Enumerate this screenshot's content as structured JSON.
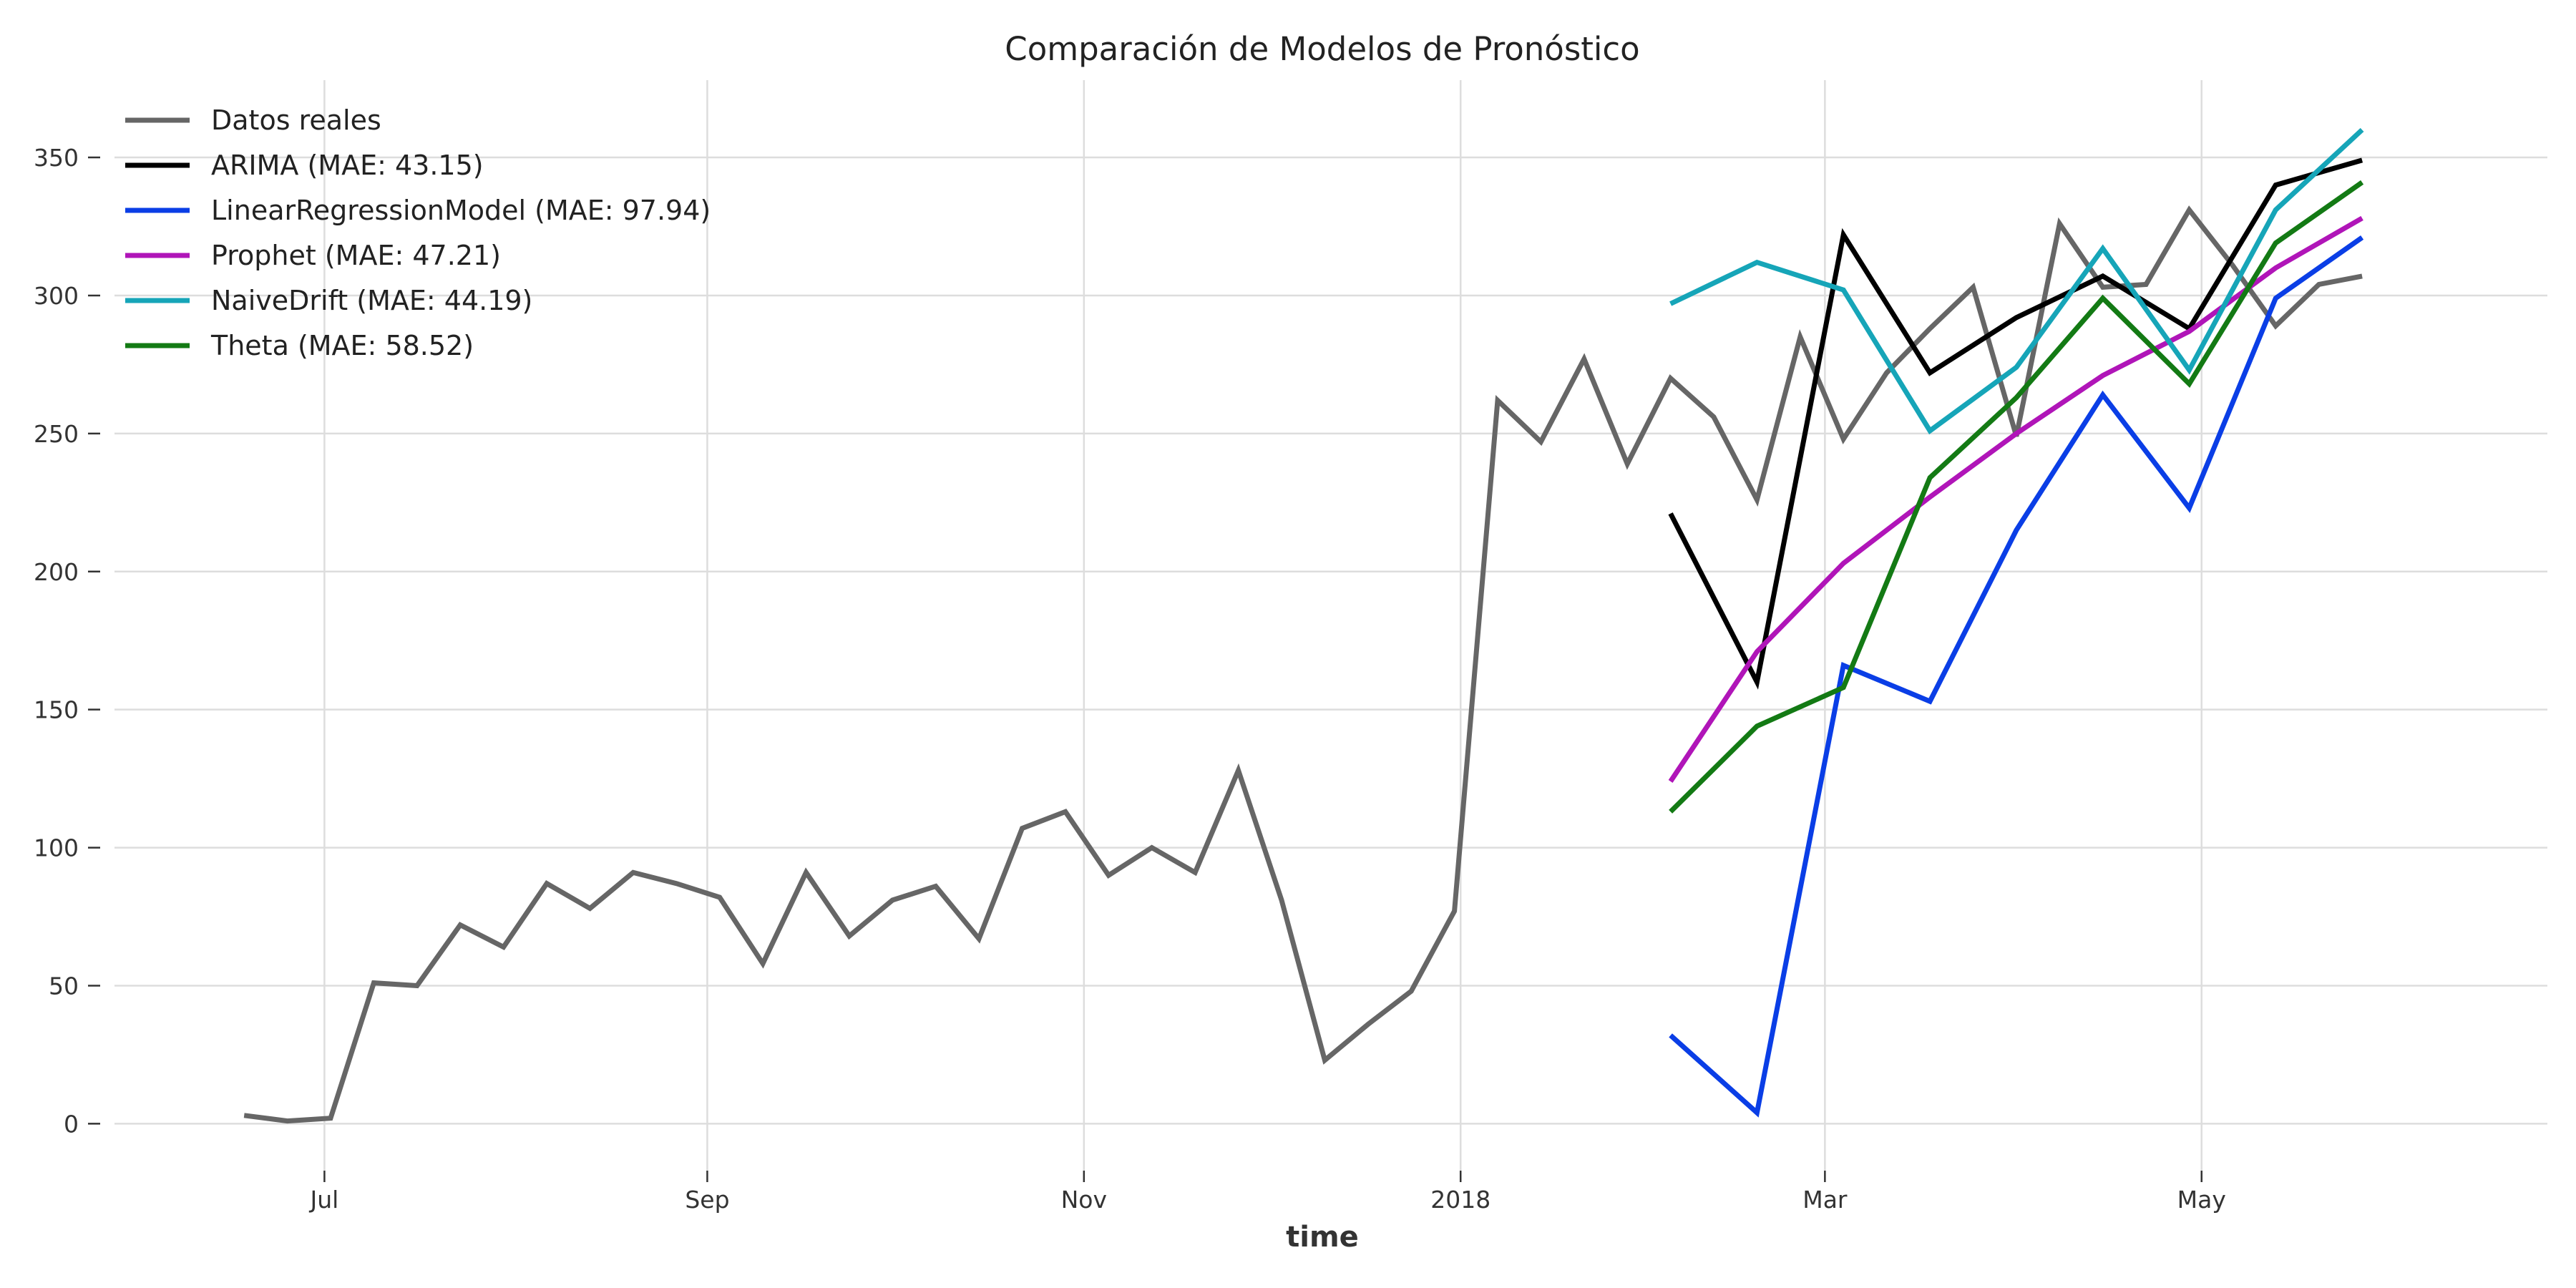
{
  "chart_data": {
    "type": "line",
    "title": "Comparación de Modelos de Pronóstico",
    "xlabel": "time",
    "ylabel": "",
    "ylim": [
      -17,
      378
    ],
    "yticks": [
      0,
      50,
      100,
      150,
      200,
      250,
      300,
      350
    ],
    "xlim": [
      "2017-05-28",
      "2018-06-26"
    ],
    "xticks": [
      {
        "date": "2017-07-01",
        "label": "Jul"
      },
      {
        "date": "2017-09-01",
        "label": "Sep"
      },
      {
        "date": "2017-11-01",
        "label": "Nov"
      },
      {
        "date": "2018-01-01",
        "label": "2018"
      },
      {
        "date": "2018-03-01",
        "label": "Mar"
      },
      {
        "date": "2018-05-01",
        "label": "May"
      }
    ],
    "grid": true,
    "legend_position": "top-left",
    "series": [
      {
        "name": "Datos reales",
        "color": "#666666",
        "start": "2017-06-18",
        "interval_days": 7,
        "values": [
          3,
          1,
          2,
          51,
          50,
          72,
          64,
          87,
          78,
          91,
          87,
          82,
          58,
          91,
          68,
          81,
          86,
          67,
          107,
          113,
          90,
          100,
          91,
          128,
          81,
          23,
          36,
          48,
          77,
          262,
          247,
          277,
          239,
          270,
          256,
          226,
          285,
          248,
          272,
          288,
          303,
          249,
          326,
          303,
          304,
          331,
          311,
          289,
          304,
          307
        ]
      },
      {
        "name": "ARIMA (MAE: 43.15)",
        "color": "#000000",
        "start": "2018-02-04",
        "interval_days": 14,
        "values": [
          221,
          160,
          322,
          272,
          292,
          307,
          288,
          340,
          349
        ]
      },
      {
        "name": "LinearRegressionModel (MAE: 97.94)",
        "color": "#0a3ee6",
        "start": "2018-02-04",
        "interval_days": 14,
        "values": [
          32,
          4,
          166,
          153,
          215,
          264,
          223,
          299,
          321
        ]
      },
      {
        "name": "Prophet (MAE: 47.21)",
        "color": "#b015b8",
        "start": "2018-02-04",
        "interval_days": 14,
        "values": [
          124,
          171,
          203,
          227,
          250,
          271,
          287,
          310,
          328
        ]
      },
      {
        "name": "NaiveDrift (MAE: 44.19)",
        "color": "#16a5b8",
        "start": "2018-02-04",
        "interval_days": 14,
        "values": [
          297,
          312,
          302,
          251,
          274,
          317,
          273,
          331,
          360
        ]
      },
      {
        "name": "Theta (MAE: 58.52)",
        "color": "#137a14",
        "start": "2018-02-04",
        "interval_days": 14,
        "values": [
          113,
          144,
          158,
          234,
          263,
          299,
          268,
          319,
          341
        ]
      }
    ]
  }
}
